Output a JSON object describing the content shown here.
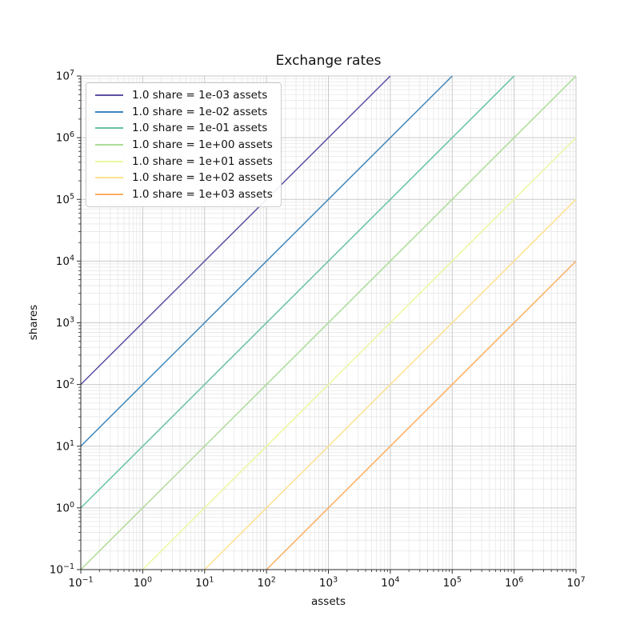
{
  "chart_data": {
    "type": "line",
    "title": "Exchange rates",
    "xlabel": "assets",
    "ylabel": "shares",
    "xscale": "log",
    "yscale": "log",
    "xlim": [
      0.1,
      10000000
    ],
    "ylim": [
      0.1,
      10000000
    ],
    "grid": "major+minor",
    "legend_position": "upper left",
    "x_tick_labels": [
      "10^-1",
      "10^0",
      "10^1",
      "10^2",
      "10^3",
      "10^4",
      "10^5",
      "10^6",
      "10^7"
    ],
    "y_tick_labels": [
      "10^-1",
      "10^0",
      "10^1",
      "10^2",
      "10^3",
      "10^4",
      "10^5",
      "10^6",
      "10^7"
    ],
    "x_tick_exponents": [
      -1,
      0,
      1,
      2,
      3,
      4,
      5,
      6,
      7
    ],
    "y_tick_exponents": [
      -1,
      0,
      1,
      2,
      3,
      4,
      5,
      6,
      7
    ],
    "series": [
      {
        "label": "1.0 share = 1e-03 assets",
        "rate": 0.001,
        "color": "#5e4fa2",
        "points": [
          [
            0.1,
            100
          ],
          [
            10000,
            10000000
          ]
        ]
      },
      {
        "label": "1.0 share = 1e-02 assets",
        "rate": 0.01,
        "color": "#3e86bc",
        "points": [
          [
            0.1,
            10
          ],
          [
            100000,
            10000000
          ]
        ]
      },
      {
        "label": "1.0 share = 1e-01 assets",
        "rate": 0.1,
        "color": "#66c2a5",
        "points": [
          [
            0.1,
            1
          ],
          [
            1000000,
            10000000
          ]
        ]
      },
      {
        "label": "1.0 share = 1e+00 assets",
        "rate": 1.0,
        "color": "#aedc97",
        "points": [
          [
            0.1,
            0.1
          ],
          [
            10000000,
            10000000
          ]
        ]
      },
      {
        "label": "1.0 share = 1e+01 assets",
        "rate": 10.0,
        "color": "#edf79f",
        "points": [
          [
            1,
            0.1
          ],
          [
            10000000,
            1000000
          ]
        ]
      },
      {
        "label": "1.0 share = 1e+02 assets",
        "rate": 100.0,
        "color": "#fee18e",
        "points": [
          [
            10,
            0.1
          ],
          [
            10000000,
            100000
          ]
        ]
      },
      {
        "label": "1.0 share = 1e+03 assets",
        "rate": 1000.0,
        "color": "#fdae61",
        "points": [
          [
            100,
            0.1
          ],
          [
            10000000,
            10000
          ]
        ]
      }
    ],
    "style": {
      "background": "#ffffff",
      "major_grid_color": "#c9c9c9",
      "minor_grid_color": "#e7e7e7",
      "spine_color": "#2b2b2b",
      "tick_color": "#2b2b2b",
      "text_color": "#111111",
      "legend_border_color": "#cccccc"
    }
  }
}
